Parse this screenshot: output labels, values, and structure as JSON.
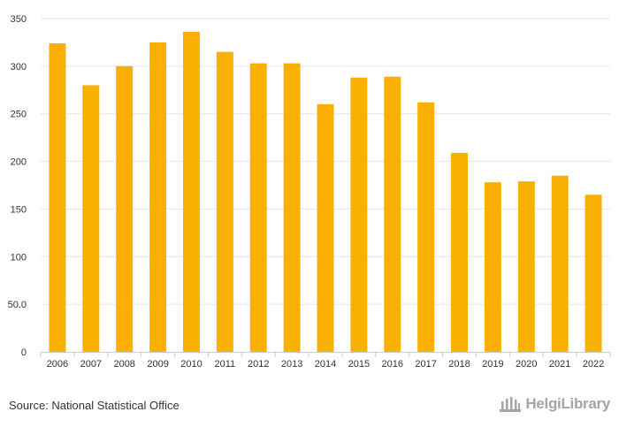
{
  "chart_data": {
    "type": "bar",
    "categories": [
      "2006",
      "2007",
      "2008",
      "2009",
      "2010",
      "2011",
      "2012",
      "2013",
      "2014",
      "2015",
      "2016",
      "2017",
      "2018",
      "2019",
      "2020",
      "2021",
      "2022"
    ],
    "values": [
      324,
      280,
      300,
      325,
      336,
      315,
      303,
      303,
      260,
      288,
      289,
      262,
      209,
      178,
      179,
      185,
      165
    ],
    "ylim": [
      0,
      350
    ],
    "yticks": [
      0,
      50,
      100,
      150,
      200,
      250,
      300,
      350
    ],
    "ytick_labels": [
      "0",
      "50.0",
      "100",
      "150",
      "200",
      "250",
      "300",
      "350"
    ],
    "bar_color": "#F9B000",
    "grid": true,
    "title": "",
    "xlabel": "",
    "ylabel": ""
  },
  "footer": {
    "source": "Source: National Statistical Office",
    "logo_icon": "building-columns-icon",
    "logo_text": "HelgiLibrary"
  }
}
